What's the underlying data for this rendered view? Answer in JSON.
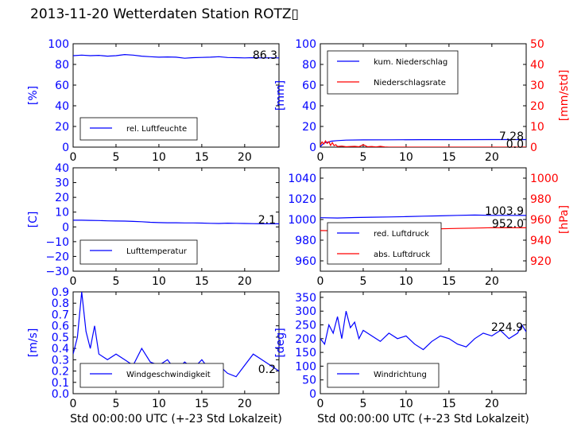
{
  "page_title": "2013-11-20 Wetterdaten Station ROTZ▯",
  "chart_data": [
    {
      "type": "line",
      "panel": "humidity",
      "ylabel": "[%]",
      "yticks": [
        "0",
        "20",
        "40",
        "60",
        "80",
        "100"
      ],
      "ylim": [
        0,
        100
      ],
      "xticks": [
        "0",
        "5",
        "10",
        "15",
        "20"
      ],
      "xlim": [
        0,
        24
      ],
      "current_value": "86.3",
      "legend_position": "lower-left",
      "series": [
        {
          "name": "rel. Luftfeuchte",
          "color": "#0000ff",
          "x": [
            0,
            1,
            2,
            3,
            4,
            5,
            6,
            7,
            8,
            9,
            10,
            11,
            12,
            13,
            14,
            15,
            16,
            17,
            18,
            19,
            20,
            21,
            22,
            23,
            24
          ],
          "y": [
            88.5,
            89,
            88.5,
            88.8,
            88,
            88.5,
            89.5,
            89,
            88,
            87.5,
            87,
            87.2,
            87,
            86,
            86.5,
            86.8,
            87,
            87.5,
            86.7,
            86.5,
            86.3,
            86.5,
            86.3,
            86.4,
            86.3
          ]
        }
      ]
    },
    {
      "type": "line",
      "panel": "precipitation",
      "ylabel": "[mm]",
      "ylabel_right": "[mm/std]",
      "yticks": [
        "0",
        "20",
        "40",
        "60",
        "80",
        "100"
      ],
      "yticks_right": [
        "0",
        "10",
        "20",
        "30",
        "40",
        "50"
      ],
      "ylim": [
        0,
        100
      ],
      "ylim_right": [
        0,
        50
      ],
      "xticks": [
        "0",
        "5",
        "10",
        "15",
        "20"
      ],
      "xlim": [
        0,
        24
      ],
      "current_value": "7.28",
      "current_value_right": "0.0",
      "legend_position": "top-left",
      "series": [
        {
          "name": "kum. Niederschlag",
          "color": "#0000ff",
          "axis": "left",
          "x": [
            0,
            0.3,
            0.6,
            1,
            1.3,
            2,
            3,
            5,
            8,
            12,
            16,
            20,
            24
          ],
          "y": [
            0.5,
            3,
            4.5,
            5,
            5.8,
            6.3,
            6.8,
            7,
            7.1,
            7.2,
            7.25,
            7.27,
            7.28
          ]
        },
        {
          "name": "Niederschlagsrate",
          "color": "#ff0000",
          "axis": "right",
          "x": [
            0,
            0.2,
            0.4,
            0.6,
            0.8,
            1,
            1.2,
            1.4,
            1.6,
            1.8,
            2,
            2.5,
            3,
            3.5,
            4,
            4.5,
            5,
            5.5,
            6,
            6.5,
            7,
            7.5,
            8,
            10,
            12,
            16,
            20,
            24
          ],
          "y": [
            1,
            2.5,
            1.5,
            3,
            1.8,
            2.6,
            0.8,
            2.2,
            0.7,
            1.2,
            0.3,
            0.5,
            0.2,
            0.3,
            0.4,
            0.2,
            1.2,
            0.2,
            0.3,
            0.1,
            0.4,
            0.1,
            0,
            0,
            0,
            0,
            0,
            0
          ]
        }
      ]
    },
    {
      "type": "line",
      "panel": "temperature",
      "ylabel": "[C]",
      "yticks": [
        "−30",
        "−20",
        "−10",
        "0",
        "10",
        "20",
        "30",
        "40"
      ],
      "ylim": [
        -30,
        40
      ],
      "xticks": [
        "0",
        "5",
        "10",
        "15",
        "20"
      ],
      "xlim": [
        0,
        24
      ],
      "current_value": "2.1",
      "legend_position": "lower-left",
      "series": [
        {
          "name": "Lufttemperatur",
          "color": "#0000ff",
          "x": [
            0,
            1,
            2,
            3,
            4,
            5,
            6,
            7,
            8,
            9,
            10,
            11,
            12,
            13,
            14,
            15,
            16,
            17,
            18,
            19,
            20,
            21,
            22,
            23,
            24
          ],
          "y": [
            4.5,
            4.5,
            4.4,
            4.3,
            4.1,
            4,
            3.9,
            3.7,
            3.5,
            3.1,
            2.9,
            2.8,
            2.8,
            2.7,
            2.7,
            2.6,
            2.4,
            2.3,
            2.5,
            2.4,
            2.3,
            2.2,
            2.1,
            2.1,
            2.1
          ]
        }
      ]
    },
    {
      "type": "line",
      "panel": "pressure",
      "ylabel_right": "[hPa]",
      "yticks": [
        "960",
        "980",
        "1000",
        "1020",
        "1040"
      ],
      "yticks_right": [
        "920",
        "940",
        "960",
        "980",
        "1000"
      ],
      "ylim": [
        950,
        1050
      ],
      "ylim_right": [
        910,
        1010
      ],
      "xticks": [
        "0",
        "5",
        "10",
        "15",
        "20"
      ],
      "xlim": [
        0,
        24
      ],
      "current_value": "1003.9",
      "current_value_right": "952.0",
      "legend_position": "lower-left",
      "series": [
        {
          "name": "red. Luftdruck",
          "color": "#0000ff",
          "axis": "left",
          "x": [
            0,
            2,
            4,
            6,
            8,
            10,
            12,
            14,
            16,
            18,
            20,
            22,
            24
          ],
          "y": [
            1001.8,
            1001.5,
            1001.9,
            1002.2,
            1002.5,
            1002.8,
            1003.2,
            1003.5,
            1004,
            1004.3,
            1004,
            1004,
            1003.9
          ]
        },
        {
          "name": "abs. Luftdruck",
          "color": "#ff0000",
          "axis": "right",
          "x": [
            0,
            2,
            4,
            6,
            8,
            10,
            12,
            14,
            16,
            18,
            20,
            22,
            24
          ],
          "y": [
            949.3,
            949.1,
            949.4,
            949.7,
            950,
            950.3,
            950.7,
            951,
            951.4,
            951.7,
            952.1,
            952,
            952
          ]
        }
      ]
    },
    {
      "type": "line",
      "panel": "wind-speed",
      "ylabel": "[m/s]",
      "yticks": [
        "0.0",
        "0.1",
        "0.2",
        "0.3",
        "0.4",
        "0.5",
        "0.6",
        "0.7",
        "0.8",
        "0.9"
      ],
      "ylim": [
        0,
        0.9
      ],
      "xticks": [
        "0",
        "5",
        "10",
        "15",
        "20"
      ],
      "xlim": [
        0,
        24
      ],
      "xlabel": "Std 00:00:00 UTC (+-23 Std Lokalzeit)",
      "current_value": "0.2",
      "legend_position": "lower-center",
      "series": [
        {
          "name": "Windgeschwindigkeit",
          "color": "#0000ff",
          "x": [
            0,
            0.5,
            1,
            1.5,
            2,
            2.5,
            3,
            4,
            5,
            6,
            7,
            8,
            9,
            10,
            11,
            12,
            13,
            14,
            15,
            16,
            17,
            18,
            19,
            20,
            21,
            22,
            23,
            24
          ],
          "y": [
            0.35,
            0.5,
            0.9,
            0.55,
            0.4,
            0.6,
            0.35,
            0.3,
            0.35,
            0.3,
            0.25,
            0.4,
            0.28,
            0.25,
            0.3,
            0.2,
            0.28,
            0.22,
            0.3,
            0.2,
            0.25,
            0.18,
            0.15,
            0.25,
            0.35,
            0.3,
            0.25,
            0.2
          ]
        }
      ]
    },
    {
      "type": "line",
      "panel": "wind-direction",
      "ylabel": "[deg]",
      "yticks": [
        "0",
        "50",
        "100",
        "150",
        "200",
        "250",
        "300",
        "350"
      ],
      "ylim": [
        0,
        370
      ],
      "xticks": [
        "0",
        "5",
        "10",
        "15",
        "20"
      ],
      "xlim": [
        0,
        24
      ],
      "xlabel": "Std 00:00:00 UTC (+-23 Std Lokalzeit)",
      "current_value": "224.9",
      "legend_position": "lower-left",
      "series": [
        {
          "name": "Windrichtung",
          "color": "#0000ff",
          "x": [
            0,
            0.5,
            1,
            1.5,
            2,
            2.5,
            3,
            3.5,
            4,
            4.5,
            5,
            6,
            7,
            8,
            9,
            10,
            11,
            12,
            13,
            14,
            15,
            16,
            17,
            18,
            19,
            20,
            21,
            22,
            23,
            23.5,
            24
          ],
          "y": [
            200,
            180,
            250,
            220,
            280,
            200,
            300,
            240,
            260,
            200,
            230,
            210,
            190,
            220,
            200,
            210,
            180,
            160,
            190,
            210,
            200,
            180,
            170,
            200,
            220,
            210,
            230,
            200,
            220,
            250,
            225
          ]
        }
      ]
    }
  ]
}
